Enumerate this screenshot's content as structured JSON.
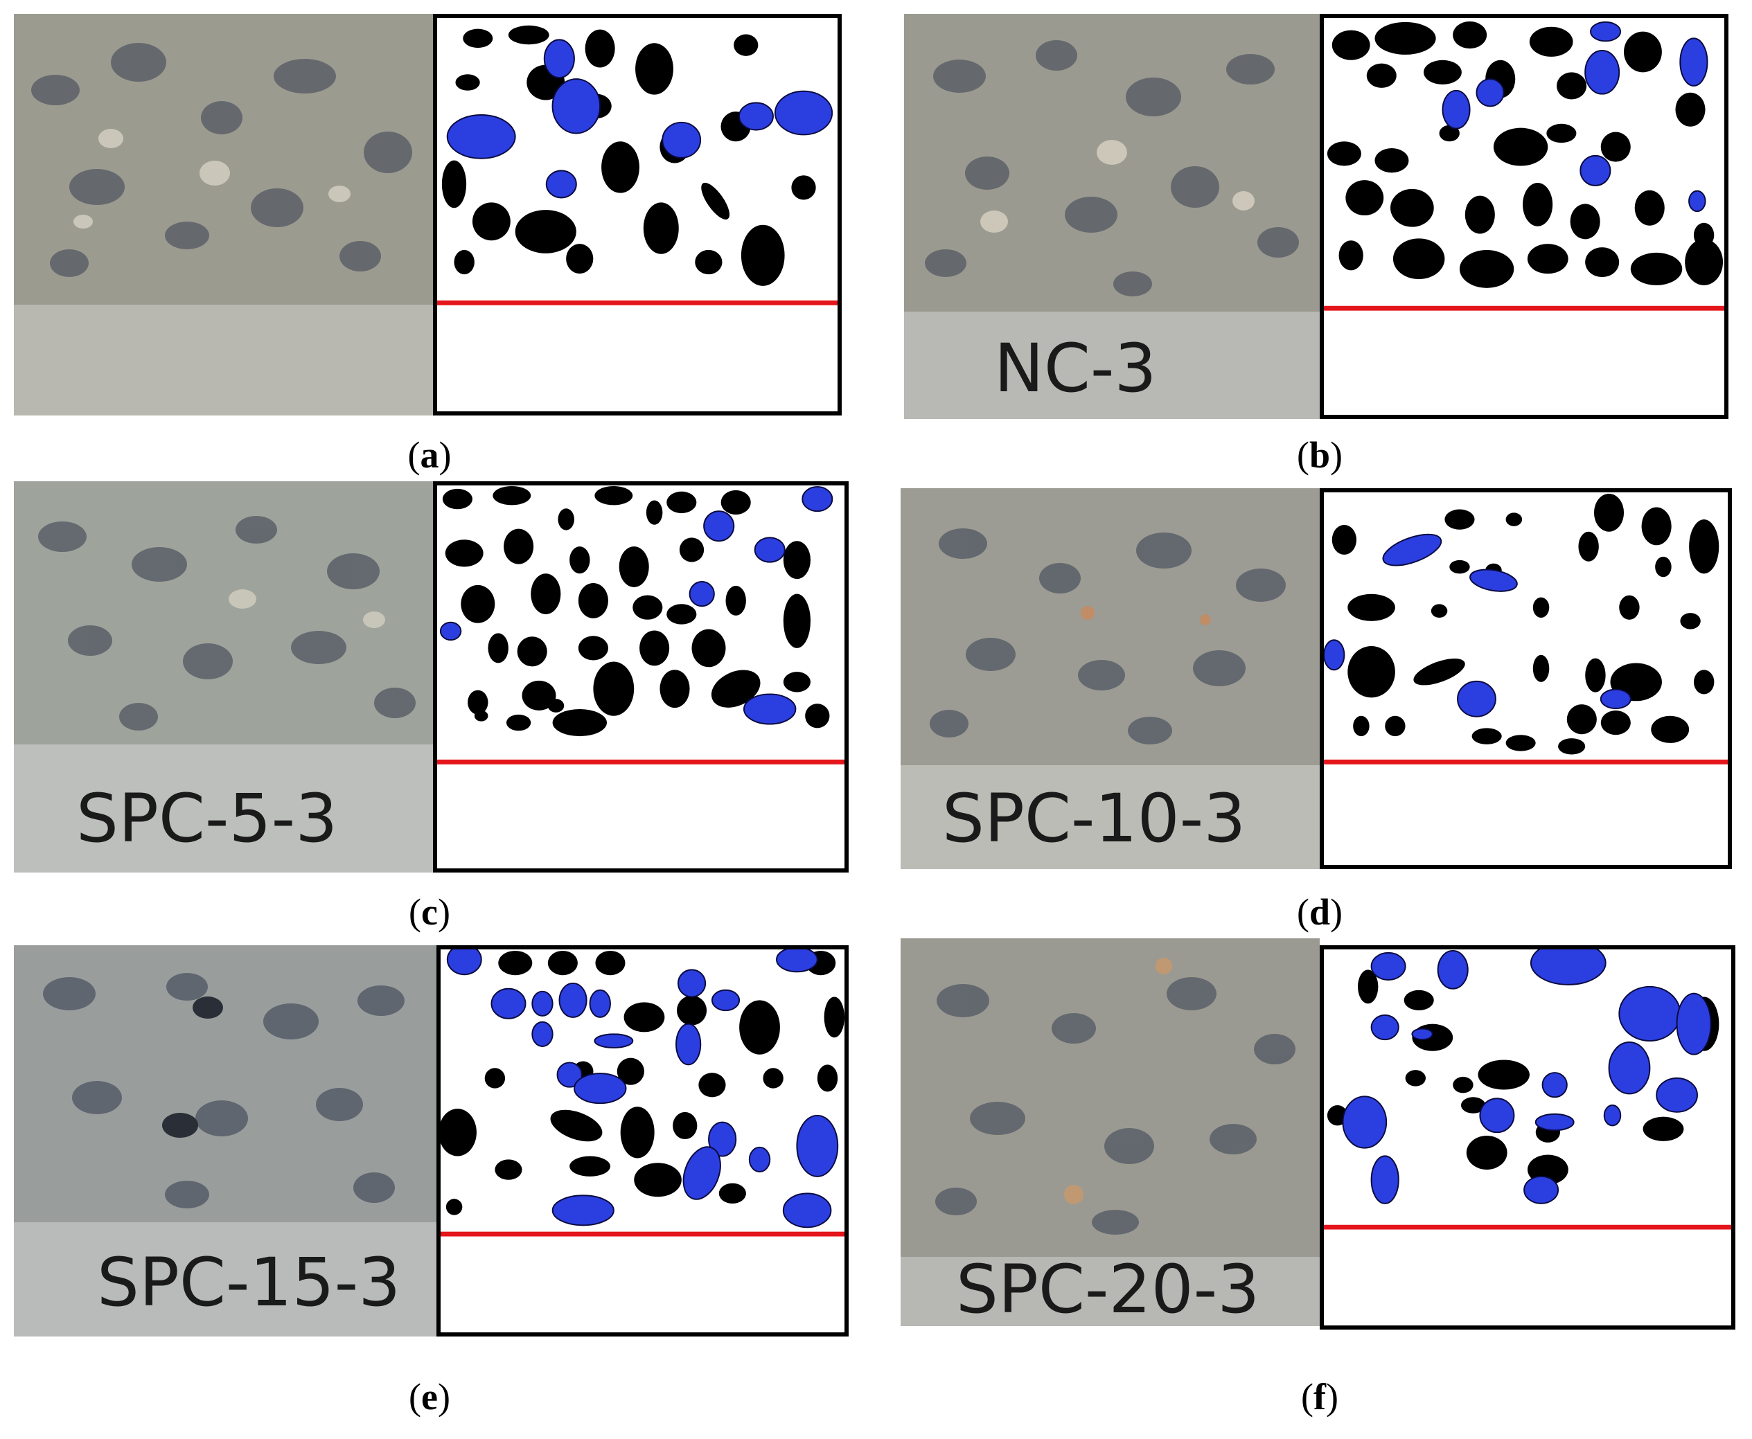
{
  "figure": {
    "panels": [
      {
        "letter": "a",
        "specimen_label": ""
      },
      {
        "letter": "b",
        "specimen_label": "NC-3"
      },
      {
        "letter": "c",
        "specimen_label": "SPC-5-3"
      },
      {
        "letter": "d",
        "specimen_label": "SPC-10-3"
      },
      {
        "letter": "e",
        "specimen_label": "SPC-15-3"
      },
      {
        "letter": "f",
        "specimen_label": "SPC-20-3"
      }
    ],
    "colors": {
      "natural_aggregate": "#000000",
      "secondary_aggregate": "#2b3fe0",
      "interface_line": "#e4161b",
      "concrete_base": "#bfc0bd",
      "fracture_surface": "#9a9a92"
    }
  }
}
